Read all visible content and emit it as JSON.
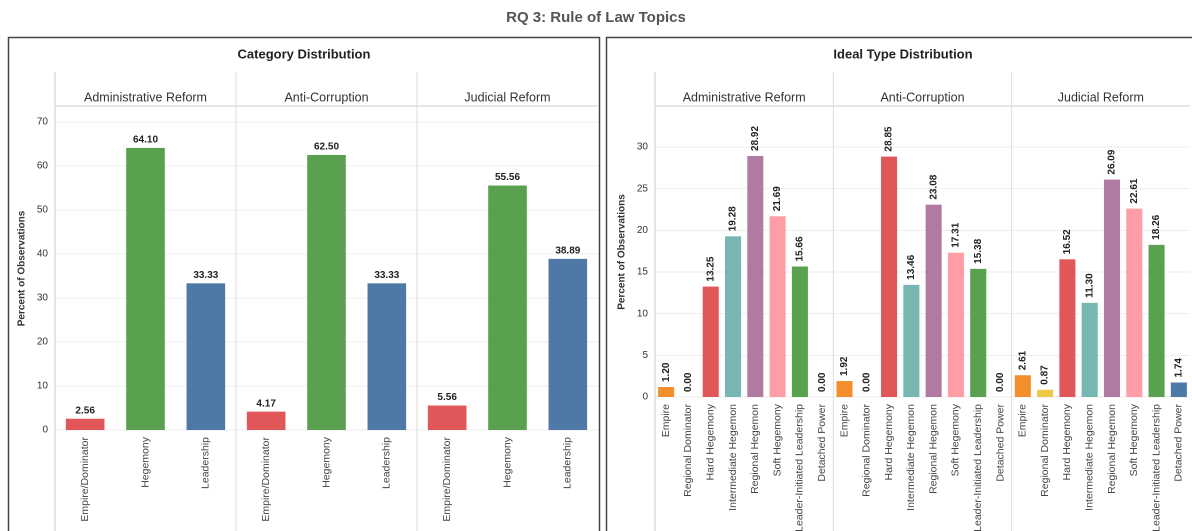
{
  "title": "RQ 3: Rule of Law Topics",
  "chart_data": [
    {
      "type": "bar",
      "title": "Category Distribution",
      "y_label": "Percent of Observations",
      "categories": [
        "Empire/Dominator",
        "Hegemony",
        "Leadership"
      ],
      "colors": [
        "#e15759",
        "#59a14f",
        "#4e79a7"
      ],
      "panels": [
        {
          "title": "Administrative Reform",
          "values": [
            2.56,
            64.1,
            33.33
          ],
          "value_labels": [
            "2.56",
            "64.10",
            "33.33"
          ]
        },
        {
          "title": "Anti-Corruption",
          "values": [
            4.17,
            62.5,
            33.33
          ],
          "value_labels": [
            "4.17",
            "62.50",
            "33.33"
          ]
        },
        {
          "title": "Judicial Reform",
          "values": [
            5.56,
            55.56,
            38.89
          ],
          "value_labels": [
            "5.56",
            "55.56",
            "38.89"
          ]
        }
      ],
      "ylim": [
        0,
        73.4
      ],
      "yticks": [
        0,
        10,
        20,
        30,
        40,
        50,
        60,
        70
      ],
      "grid": true
    },
    {
      "type": "bar",
      "title": "Ideal Type Distribution",
      "y_label": "Percent of Observations",
      "categories": [
        "Empire",
        "Regional Dominator",
        "Hard Hegemony",
        "Intermediate Hegemon",
        "Regional Hegemon",
        "Soft Hegemony",
        "Leader-Initiated Leadership",
        "Detached Power"
      ],
      "colors": [
        "#f28e2b",
        "#edc948",
        "#e15759",
        "#76b7b2",
        "#b07aa1",
        "#ff9da7",
        "#59a14f",
        "#4e79a7"
      ],
      "panels": [
        {
          "title": "Administrative Reform",
          "values": [
            1.2,
            0,
            13.25,
            19.28,
            28.92,
            21.69,
            15.66,
            0
          ],
          "value_labels": [
            "1.20",
            "0.00",
            "13.25",
            "19.28",
            "28.92",
            "21.69",
            "15.66",
            "0.00"
          ]
        },
        {
          "title": "Anti-Corruption",
          "values": [
            1.92,
            0,
            28.85,
            13.46,
            23.08,
            17.31,
            15.38,
            0
          ],
          "value_labels": [
            "1.92",
            "0.00",
            "28.85",
            "13.46",
            "23.08",
            "17.31",
            "15.38",
            "0.00"
          ]
        },
        {
          "title": "Judicial Reform",
          "values": [
            2.61,
            0.87,
            16.52,
            11.3,
            26.09,
            22.61,
            18.26,
            1.74
          ],
          "value_labels": [
            "2.61",
            "0.87",
            "16.52",
            "11.30",
            "26.09",
            "22.61",
            "18.26",
            "1.74"
          ]
        }
      ],
      "ylim": [
        0,
        34.8
      ],
      "yticks": [
        0,
        5,
        10,
        15,
        20,
        25,
        30
      ],
      "grid": true
    }
  ]
}
